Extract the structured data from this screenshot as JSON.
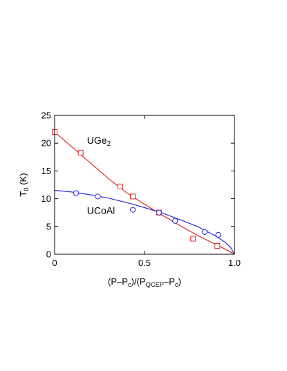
{
  "chart_data": {
    "type": "scatter",
    "xlim": [
      0,
      1.0
    ],
    "ylim": [
      0,
      25
    ],
    "x_ticks": [
      0,
      0.5,
      1.0
    ],
    "x_tick_labels": [
      "0",
      "0.5",
      "1.0"
    ],
    "y_ticks": [
      0,
      5,
      10,
      15,
      20,
      25
    ],
    "y_tick_labels": [
      "0",
      "5",
      "10",
      "15",
      "20",
      "25"
    ],
    "xlabel": {
      "parts": [
        {
          "t": "(P–P",
          "s": ""
        },
        {
          "t": "c",
          "s": "sub"
        },
        {
          "t": ")/(P",
          "s": ""
        },
        {
          "t": "QCEP",
          "s": "sub"
        },
        {
          "t": "–P",
          "s": ""
        },
        {
          "t": "c",
          "s": "sub"
        },
        {
          "t": ")",
          "s": ""
        }
      ]
    },
    "ylabel": {
      "parts": [
        {
          "t": "T",
          "s": ""
        },
        {
          "t": "0",
          "s": "sub"
        },
        {
          "t": " (K)",
          "s": ""
        }
      ]
    },
    "grid": false,
    "series": [
      {
        "name_parts": [
          {
            "t": "UGe",
            "s": ""
          },
          {
            "t": "2",
            "s": "sub"
          }
        ],
        "label_at": [
          0.18,
          19.9
        ],
        "marker": "square",
        "color": "#e0282a",
        "points": [
          [
            0.0,
            22.0
          ],
          [
            0.145,
            18.3
          ],
          [
            0.365,
            12.2
          ],
          [
            0.435,
            10.4
          ],
          [
            0.58,
            7.5
          ],
          [
            0.77,
            2.8
          ],
          [
            0.905,
            1.5
          ]
        ],
        "fit": [
          [
            0.0,
            22.0
          ],
          [
            0.1,
            19.2
          ],
          [
            0.2,
            16.4
          ],
          [
            0.3,
            13.6
          ],
          [
            0.4,
            11.1
          ],
          [
            0.5,
            9.0
          ],
          [
            0.6,
            7.0
          ],
          [
            0.7,
            5.1
          ],
          [
            0.8,
            3.3
          ],
          [
            0.9,
            1.7
          ],
          [
            0.95,
            0.9
          ],
          [
            1.0,
            0.0
          ]
        ]
      },
      {
        "name_parts": [
          {
            "t": "UCoAl",
            "s": ""
          }
        ],
        "label_at": [
          0.18,
          7.3
        ],
        "marker": "circle",
        "color": "#2a2ad8",
        "points": [
          [
            0.12,
            11.0
          ],
          [
            0.24,
            10.4
          ],
          [
            0.435,
            8.0
          ],
          [
            0.58,
            7.5
          ],
          [
            0.67,
            6.0
          ],
          [
            0.835,
            4.0
          ],
          [
            0.91,
            3.5
          ]
        ],
        "fit": [
          [
            0.0,
            11.5
          ],
          [
            0.1,
            11.2
          ],
          [
            0.2,
            10.7
          ],
          [
            0.3,
            10.1
          ],
          [
            0.4,
            9.3
          ],
          [
            0.5,
            8.4
          ],
          [
            0.6,
            7.4
          ],
          [
            0.7,
            6.2
          ],
          [
            0.8,
            4.9
          ],
          [
            0.9,
            3.2
          ],
          [
            0.95,
            2.1
          ],
          [
            0.98,
            1.2
          ],
          [
            1.0,
            0.0
          ]
        ]
      }
    ]
  }
}
